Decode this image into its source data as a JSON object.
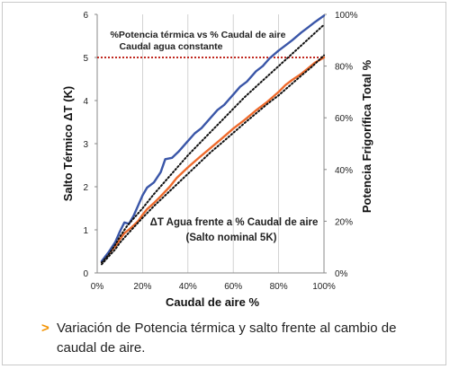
{
  "chart_data": {
    "type": "line",
    "annotation_top_line1": "%Potencia térmica vs % Caudal de aire",
    "annotation_top_line2": "Caudal agua constante",
    "annotation_mid_line1": "ΔT Agua frente a % Caudal de aire",
    "annotation_mid_line2": "(Salto nominal 5K)",
    "xlabel": "Caudal de aire %",
    "ylabel_left": "Salto Térmico ΔT (K)",
    "ylabel_right": "Potencia Frigorífica Total %",
    "x_ticks": [
      "0%",
      "20%",
      "40%",
      "60%",
      "80%",
      "100%"
    ],
    "y_left_ticks": [
      "0",
      "1",
      "2",
      "3",
      "4",
      "5",
      "6"
    ],
    "y_right_ticks": [
      "0%",
      "20%",
      "40%",
      "60%",
      "80%",
      "100%"
    ],
    "xlim": [
      0,
      100
    ],
    "ylim_left": [
      0,
      6
    ],
    "ylim_right": [
      0,
      100
    ],
    "grid": "vertical",
    "colors": {
      "blue": "#3a56a8",
      "orange": "#ee6a2c",
      "dotted": "#111111",
      "ref_line": "#c0281f",
      "axis": "#888888"
    },
    "reference_line": {
      "axis": "left",
      "y": 5
    },
    "series": [
      {
        "axis": "right",
        "style": "solid",
        "color": "blue",
        "x": [
          2,
          5,
          8,
          10,
          12,
          14,
          16,
          18,
          20,
          22,
          25,
          28,
          30,
          33,
          36,
          40,
          43,
          46,
          50,
          53,
          56,
          60,
          63,
          66,
          70,
          73,
          76,
          80,
          83,
          86,
          90,
          93,
          96,
          100
        ],
        "y": [
          4.5,
          8,
          12,
          16,
          19.5,
          19,
          22,
          26,
          30,
          33,
          35,
          39,
          44,
          44.5,
          47,
          51,
          54,
          56,
          60,
          63,
          65,
          69,
          72,
          74,
          78,
          80,
          83,
          86,
          88,
          90,
          93,
          95,
          97,
          99.5
        ]
      },
      {
        "axis": "right",
        "style": "dotted",
        "color": "dotted",
        "x": [
          2,
          5,
          8,
          10,
          13,
          16,
          20,
          25,
          30,
          35,
          40,
          45,
          50,
          55,
          60,
          65,
          70,
          75,
          80,
          85,
          90,
          95,
          100
        ],
        "y": [
          4,
          7,
          11,
          14,
          18,
          21,
          25,
          30.5,
          35.5,
          40.5,
          45.5,
          50,
          54.5,
          59,
          63.5,
          68,
          72,
          76,
          80,
          84,
          88,
          92,
          96
        ]
      },
      {
        "axis": "left",
        "style": "solid",
        "color": "orange",
        "x": [
          2,
          5,
          8,
          10,
          12,
          15,
          18,
          20,
          22,
          25,
          28,
          32,
          35,
          40,
          45,
          50,
          55,
          60,
          65,
          70,
          75,
          80,
          83,
          86,
          90,
          93,
          96,
          100
        ],
        "y": [
          0.25,
          0.45,
          0.62,
          0.78,
          0.92,
          1.05,
          1.2,
          1.35,
          1.48,
          1.62,
          1.78,
          2.0,
          2.2,
          2.45,
          2.68,
          2.9,
          3.12,
          3.35,
          3.55,
          3.77,
          3.97,
          4.2,
          4.36,
          4.48,
          4.62,
          4.75,
          4.88,
          5.0
        ]
      },
      {
        "axis": "left",
        "style": "dotted",
        "color": "dotted",
        "x": [
          2,
          5,
          8,
          10,
          13,
          16,
          20,
          25,
          30,
          35,
          40,
          45,
          50,
          55,
          60,
          65,
          70,
          75,
          80,
          85,
          90,
          95,
          100
        ],
        "y": [
          0.2,
          0.38,
          0.55,
          0.7,
          0.88,
          1.05,
          1.28,
          1.55,
          1.8,
          2.05,
          2.3,
          2.55,
          2.8,
          3.02,
          3.25,
          3.48,
          3.7,
          3.92,
          4.12,
          4.35,
          4.58,
          4.8,
          5.05
        ]
      }
    ]
  },
  "caption": {
    "marker": ">",
    "text": "Variación de Potencia térmica y salto frente al cambio de caudal de aire."
  }
}
